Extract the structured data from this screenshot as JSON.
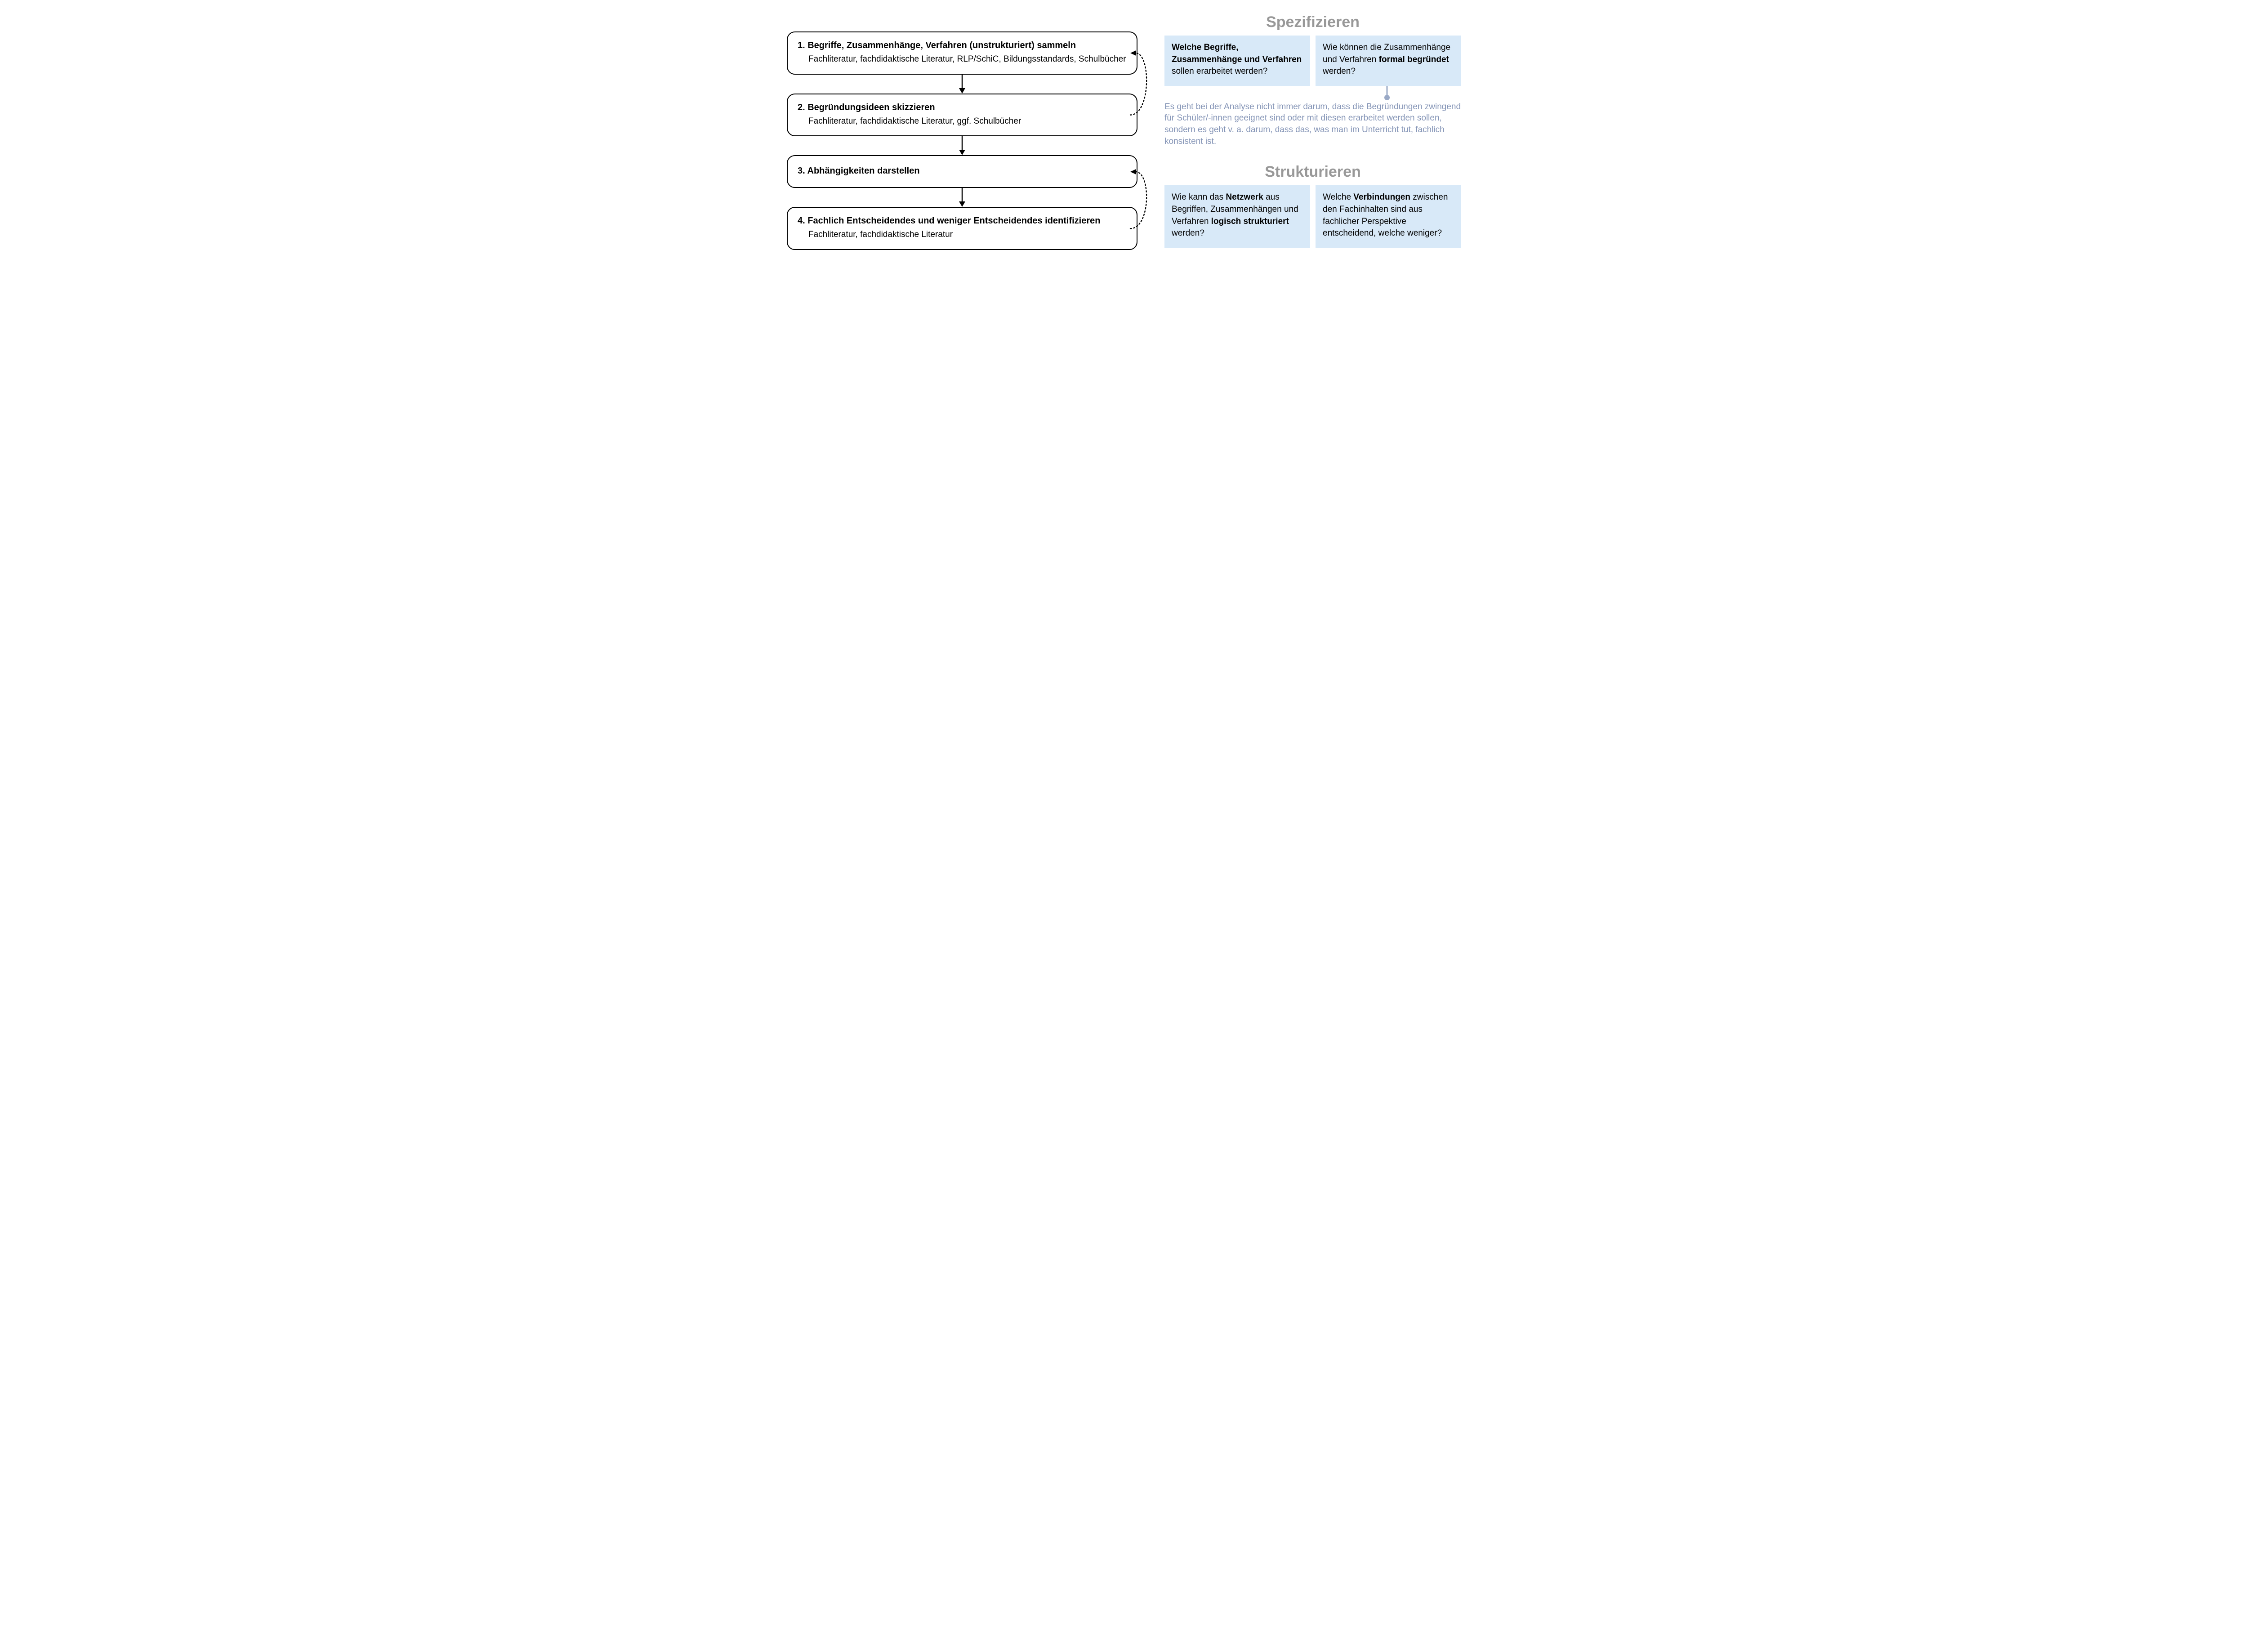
{
  "colors": {
    "box_border": "#000000",
    "box_bg": "#ffffff",
    "text": "#000000",
    "arrow": "#000000",
    "card_bg": "#d8e9f8",
    "heading_gray": "#989898",
    "callout_text": "#8494b6",
    "callout_line": "#9aa9c6"
  },
  "flow": {
    "steps": [
      {
        "title": "1. Begriffe, Zusammenhänge, Verfahren (unstrukturiert) sammeln",
        "sub": "Fachliteratur, fachdidaktische Literatur, RLP/SchiC, Bildungsstandards, Schulbücher"
      },
      {
        "title": "2. Begründungsideen skizzieren",
        "sub": "Fachliteratur, fachdidaktische Literatur, ggf. Schulbücher"
      },
      {
        "title": "3. Abhängigkeiten darstellen",
        "sub": ""
      },
      {
        "title": "4. Fachlich Entscheidendes und weniger Entscheidendes identifizieren",
        "sub": "Fachliteratur, fachdidaktische Literatur"
      }
    ]
  },
  "right": {
    "spezifizieren": {
      "heading": "Spezifizieren",
      "card1_html": "<b>Welche Begriffe, Zusammenhänge und Verfahren</b> sollen erarbeitet werden?",
      "card2_html": "Wie können die Zusammenhänge und Verfahren <b>formal begründet</b> werden?"
    },
    "callout": "Es geht bei der Analyse nicht immer darum, dass die Begründungen zwingend für Schüler/-innen geeignet sind oder mit diesen erarbeitet werden sollen, sondern es geht v. a. darum, dass das, was man im Unterricht tut, fachlich konsistent ist.",
    "strukturieren": {
      "heading": "Strukturieren",
      "card1_html": "Wie kann das <b>Netz&shy;werk</b> aus Begriffen, Zusammenhängen und Verfahren <b>logisch strukturiert</b> werden?",
      "card2_html": "Welche <b>Verbindungen</b> zwischen den Fachinhalten sind aus fachlicher Perspektive entscheidend, welche weniger?"
    }
  }
}
